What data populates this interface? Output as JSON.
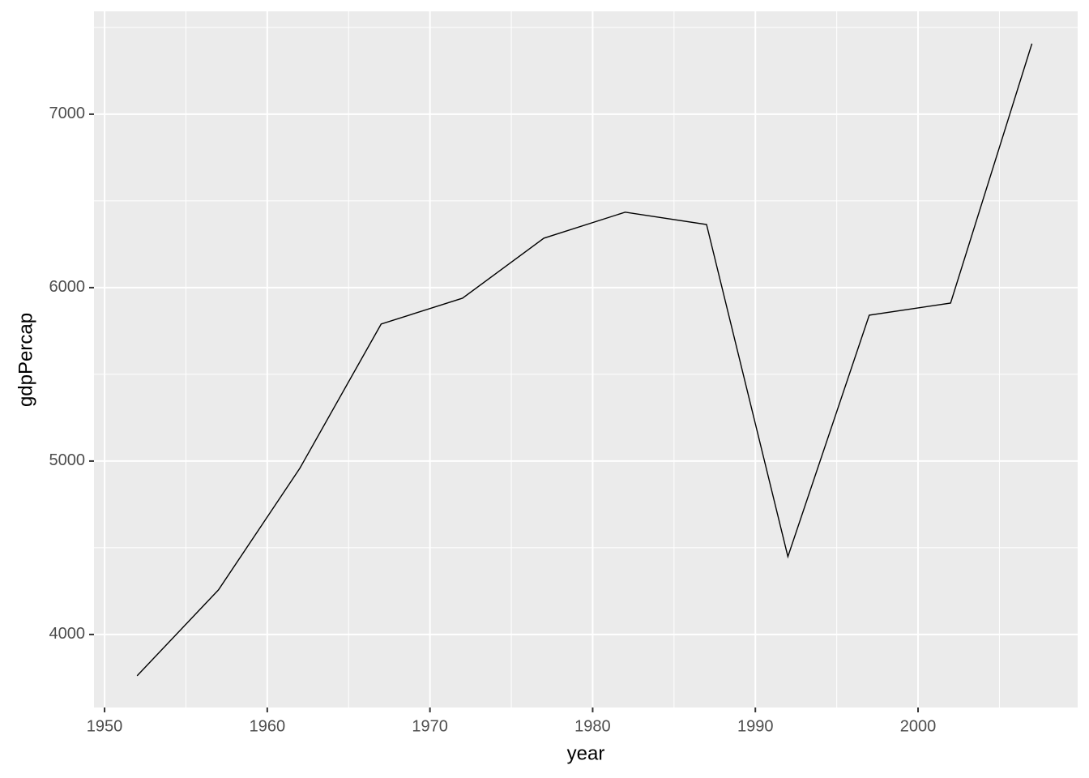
{
  "chart_data": {
    "type": "line",
    "x_label": "year",
    "y_label": "gdpPercap",
    "x": [
      1952,
      1957,
      1962,
      1967,
      1972,
      1977,
      1982,
      1987,
      1992,
      1997,
      2002,
      2007
    ],
    "series": [
      {
        "color": "#000000",
        "values": [
          3762,
          4257,
          4958,
          5790,
          5939,
          6285,
          6435,
          6364,
          4449,
          5841,
          5911,
          7407
        ]
      }
    ],
    "xlim": [
      1949.35,
      2009.81
    ],
    "xticks": [
      1950,
      1960,
      1970,
      1980,
      1990,
      2000
    ],
    "ylim": [
      3579,
      7593
    ],
    "yticks": [
      4000,
      5000,
      6000,
      7000
    ],
    "grid": true
  }
}
